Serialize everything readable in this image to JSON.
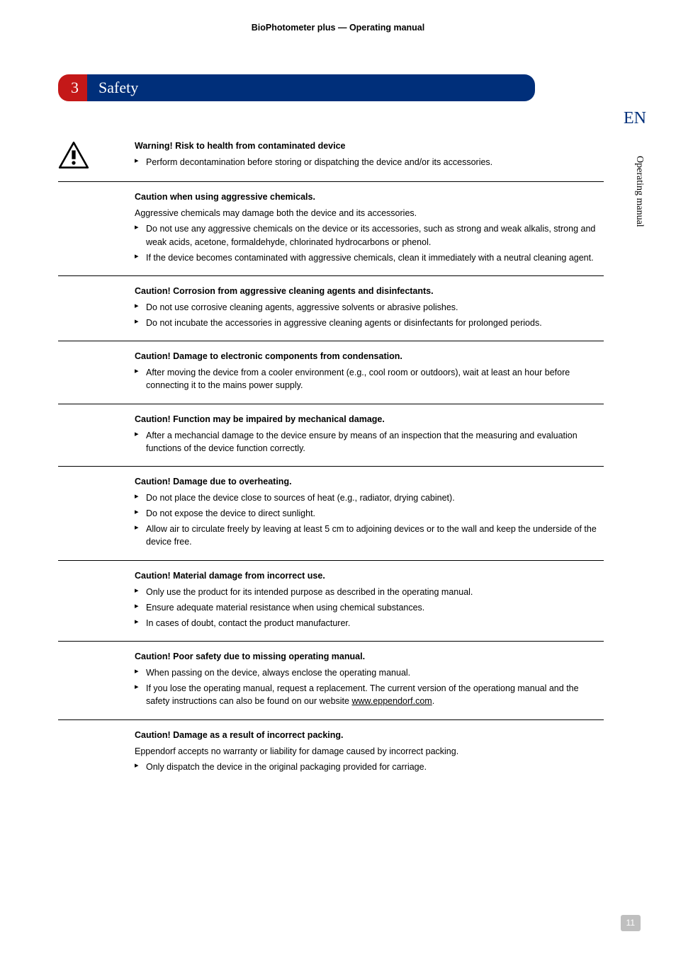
{
  "header": "BioPhotometer plus  —  Operating manual",
  "chapter": {
    "number": "3",
    "title": "Safety"
  },
  "lang": "EN",
  "side_label": "Operating manual",
  "page_number": "11",
  "sections": [
    {
      "has_icon": true,
      "title": "Warning! Risk to health from contaminated device",
      "intro": "",
      "items": [
        "Perform decontamination before storing or dispatching the device and/or its accessories."
      ]
    },
    {
      "title": "Caution when using aggressive chemicals.",
      "intro": "Aggressive chemicals may damage both the device and its accessories.",
      "items": [
        "Do not use any aggressive chemicals on the device or its accessories, such as strong and weak alkalis, strong and weak acids, acetone, formaldehyde, chlorinated hydrocarbons or phenol.",
        "If the device becomes contaminated with aggressive chemicals, clean it immediately with a neutral cleaning agent."
      ]
    },
    {
      "title": "Caution! Corrosion from aggressive cleaning agents and disinfectants.",
      "intro": "",
      "items": [
        "Do not use corrosive cleaning agents, aggressive solvents or abrasive polishes.",
        "Do not incubate the accessories in aggressive cleaning agents or disinfectants for prolonged periods."
      ]
    },
    {
      "title": "Caution! Damage to electronic components from condensation.",
      "intro": "",
      "items": [
        "After moving the device from a cooler environment (e.g., cool room or outdoors), wait at least an hour before connecting it to the mains power supply."
      ]
    },
    {
      "title": "Caution! Function may be impaired by mechanical damage.",
      "intro": "",
      "items": [
        "After a mechancial damage to the device ensure by means of an inspection that the measuring and evaluation functions of the device function correctly."
      ]
    },
    {
      "title": "Caution! Damage due to overheating.",
      "intro": "",
      "items": [
        "Do not place the device close to sources of heat (e.g., radiator, drying cabinet).",
        "Do not expose the device to direct sunlight.",
        "Allow air to circulate freely by leaving at least 5 cm to adjoining devices or to the wall and keep the underside of the device free."
      ]
    },
    {
      "title": "Caution! Material damage from incorrect use.",
      "intro": "",
      "items": [
        "Only use the product for its intended purpose as described in the operating manual.",
        "Ensure adequate material resistance when using chemical substances.",
        "In cases of doubt, contact the product manufacturer."
      ]
    },
    {
      "title": "Caution! Poor safety due to missing operating manual.",
      "intro": "",
      "items": [
        "When passing on the device, always enclose the operating manual.",
        "If you lose the operating manual, request a replacement. The current version of the operationg manual and the safety instructions can also be found on our website "
      ],
      "link": "www.eppendorf.com",
      "link_after": "."
    },
    {
      "title": "Caution! Damage as a result of incorrect packing.",
      "intro": "Eppendorf accepts no warranty or liability for damage caused by incorrect packing.",
      "items": [
        "Only dispatch the device in the original packaging provided for carriage."
      ],
      "no_border": true
    }
  ]
}
